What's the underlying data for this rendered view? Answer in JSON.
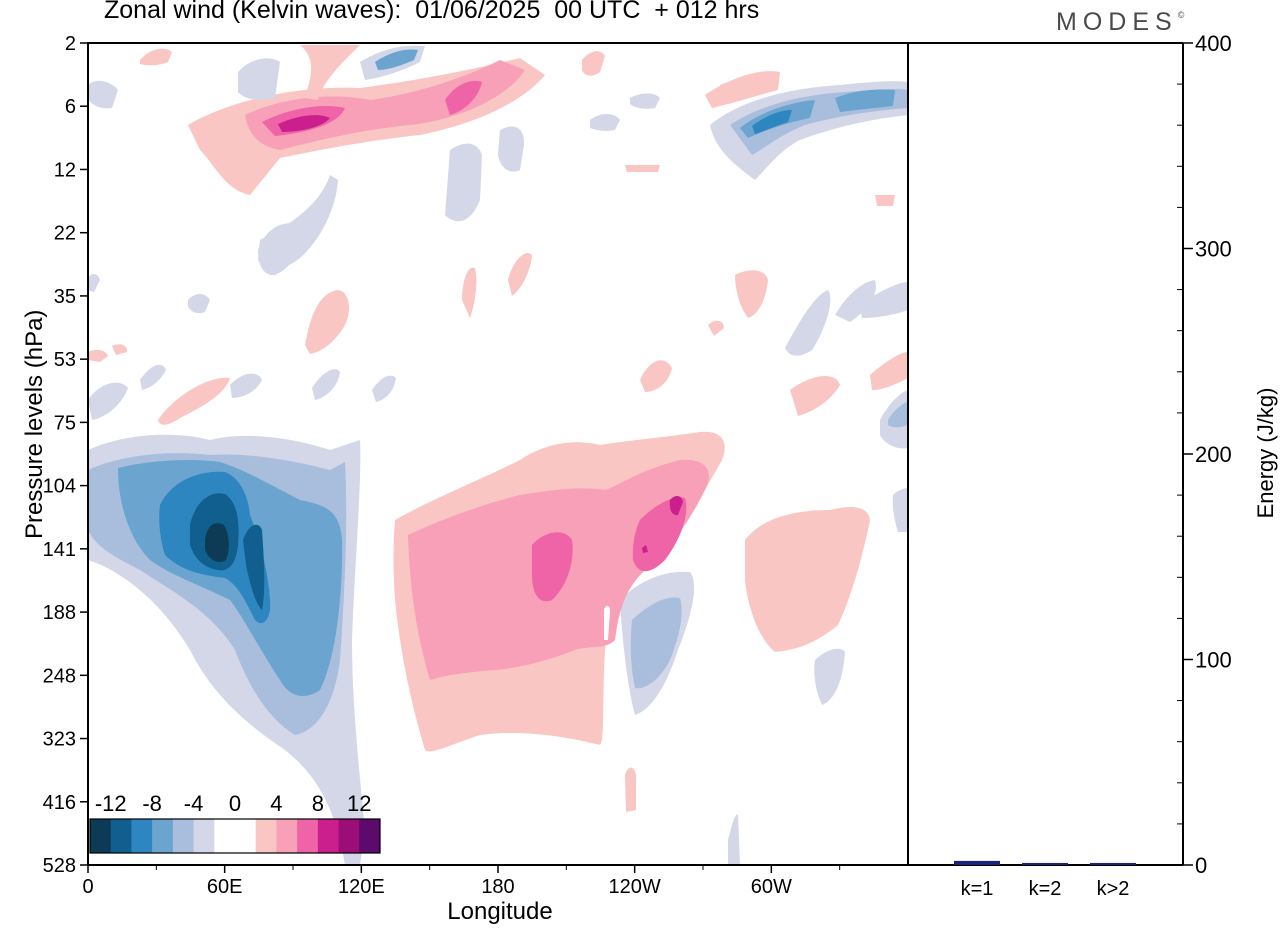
{
  "title": "Zonal wind (Kelvin waves):  01/06/2025  00 UTC  + 012 hrs",
  "brand": "MODES",
  "chart_data": [
    {
      "type": "heatmap",
      "title": "Zonal wind (Kelvin waves):  01/06/2025  00 UTC  + 012 hrs",
      "xlabel": "Longitude",
      "ylabel": "Pressure levels (hPa)",
      "x_ticks": [
        "0",
        "60E",
        "120E",
        "180",
        "120W",
        "60W"
      ],
      "x_tick_values": [
        0,
        60,
        120,
        180,
        240,
        300
      ],
      "xlim": [
        0,
        360
      ],
      "y_ticks": [
        "2",
        "6",
        "12",
        "22",
        "35",
        "53",
        "75",
        "104",
        "141",
        "188",
        "248",
        "323",
        "416",
        "528"
      ],
      "colorbar": {
        "labels": [
          "-12",
          "-8",
          "-4",
          "0",
          "4",
          "8",
          "12"
        ],
        "colors": [
          "#0d3a55",
          "#105f8e",
          "#2e86c1",
          "#6aa4cf",
          "#a9bedd",
          "#d4d7e8",
          "#ffffff",
          "#ffffff",
          "#f9c6c4",
          "#f7a0b8",
          "#ef64a6",
          "#cc1f8e",
          "#9b0e78",
          "#5c0a6b"
        ]
      },
      "features": [
        {
          "type": "negative",
          "level": -14,
          "lon_center": 58,
          "pressure_center": 130,
          "note": "strongest easterly core"
        },
        {
          "type": "negative",
          "level": -8,
          "lon_range": [
            35,
            115
          ],
          "pressure_range": [
            104,
            300
          ]
        },
        {
          "type": "positive",
          "level": 8,
          "lon_center": 200,
          "pressure_center": 150
        },
        {
          "type": "positive",
          "level": 4,
          "lon_range": [
            135,
            295
          ],
          "pressure_range": [
            90,
            330
          ]
        },
        {
          "type": "positive",
          "level": 12,
          "lon_range": [
            75,
            115
          ],
          "pressure_center": 8
        },
        {
          "type": "negative",
          "level": -8,
          "lon_range": [
            280,
            360
          ],
          "pressure_center": 7
        }
      ]
    },
    {
      "type": "bar",
      "categories": [
        "k=1",
        "k=2",
        "k>2"
      ],
      "values": [
        2,
        1,
        1
      ],
      "ylabel": "Energy (J/kg)",
      "ylim": [
        0,
        400
      ],
      "y_ticks": [
        0,
        100,
        200,
        300,
        400
      ],
      "bar_color": "#1a237e"
    }
  ]
}
